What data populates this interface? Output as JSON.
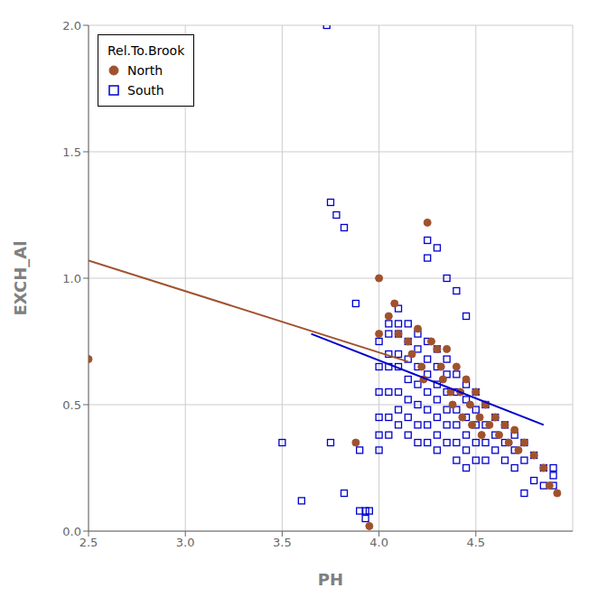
{
  "chart_data": {
    "type": "scatter",
    "xlabel": "PH",
    "ylabel": "EXCH_Al",
    "legend_title": "Rel.To.Brook",
    "legend": "upper left",
    "grid": true,
    "xlim": [
      2.5,
      5.0
    ],
    "ylim": [
      0,
      2.0
    ],
    "xticks": [
      2.5,
      {
        "value": 3,
        "label": "3.0"
      },
      3.5,
      {
        "value": 4,
        "label": "4.0"
      },
      4.5
    ],
    "yticks": [
      {
        "value": 0,
        "label": "0.0"
      },
      0.5,
      {
        "value": 1,
        "label": "1.0"
      },
      1.5,
      {
        "value": 2,
        "label": "2.0"
      }
    ],
    "series": [
      {
        "name": "North",
        "color": "#A0522D",
        "marker": "circle",
        "points": [
          [
            2.5,
            0.68
          ],
          [
            3.88,
            0.35
          ],
          [
            3.95,
            0.02
          ],
          [
            4.0,
            1.0
          ],
          [
            4.0,
            0.78
          ],
          [
            4.05,
            0.85
          ],
          [
            4.08,
            0.9
          ],
          [
            4.1,
            0.78
          ],
          [
            4.15,
            0.75
          ],
          [
            4.17,
            0.7
          ],
          [
            4.2,
            0.8
          ],
          [
            4.22,
            0.65
          ],
          [
            4.23,
            0.6
          ],
          [
            4.25,
            1.22
          ],
          [
            4.27,
            0.75
          ],
          [
            4.3,
            0.72
          ],
          [
            4.32,
            0.65
          ],
          [
            4.33,
            0.6
          ],
          [
            4.35,
            0.72
          ],
          [
            4.37,
            0.55
          ],
          [
            4.38,
            0.5
          ],
          [
            4.4,
            0.65
          ],
          [
            4.42,
            0.55
          ],
          [
            4.43,
            0.45
          ],
          [
            4.45,
            0.6
          ],
          [
            4.47,
            0.5
          ],
          [
            4.48,
            0.42
          ],
          [
            4.5,
            0.55
          ],
          [
            4.52,
            0.45
          ],
          [
            4.53,
            0.38
          ],
          [
            4.55,
            0.5
          ],
          [
            4.57,
            0.42
          ],
          [
            4.6,
            0.45
          ],
          [
            4.62,
            0.38
          ],
          [
            4.65,
            0.42
          ],
          [
            4.67,
            0.35
          ],
          [
            4.7,
            0.4
          ],
          [
            4.72,
            0.32
          ],
          [
            4.75,
            0.35
          ],
          [
            4.8,
            0.3
          ],
          [
            4.85,
            0.25
          ],
          [
            4.88,
            0.18
          ],
          [
            4.92,
            0.15
          ]
        ]
      },
      {
        "name": "South",
        "color": "#0000CD",
        "marker": "open-square",
        "points": [
          [
            3.73,
            2.0
          ],
          [
            3.75,
            1.3
          ],
          [
            3.78,
            1.25
          ],
          [
            3.82,
            1.2
          ],
          [
            3.88,
            0.9
          ],
          [
            3.9,
            0.32
          ],
          [
            3.93,
            0.05
          ],
          [
            3.95,
            0.08
          ],
          [
            3.5,
            0.35
          ],
          [
            3.6,
            0.12
          ],
          [
            3.75,
            0.35
          ],
          [
            3.82,
            0.15
          ],
          [
            3.9,
            0.08
          ],
          [
            3.93,
            0.08
          ],
          [
            4.0,
            0.75
          ],
          [
            4.0,
            0.65
          ],
          [
            4.0,
            0.55
          ],
          [
            4.0,
            0.45
          ],
          [
            4.0,
            0.38
          ],
          [
            4.0,
            0.32
          ],
          [
            4.05,
            0.82
          ],
          [
            4.05,
            0.78
          ],
          [
            4.05,
            0.7
          ],
          [
            4.05,
            0.65
          ],
          [
            4.05,
            0.55
          ],
          [
            4.05,
            0.45
          ],
          [
            4.05,
            0.38
          ],
          [
            4.1,
            0.88
          ],
          [
            4.1,
            0.82
          ],
          [
            4.1,
            0.78
          ],
          [
            4.1,
            0.7
          ],
          [
            4.1,
            0.65
          ],
          [
            4.1,
            0.55
          ],
          [
            4.1,
            0.48
          ],
          [
            4.1,
            0.42
          ],
          [
            4.15,
            0.82
          ],
          [
            4.15,
            0.75
          ],
          [
            4.15,
            0.68
          ],
          [
            4.15,
            0.6
          ],
          [
            4.15,
            0.52
          ],
          [
            4.15,
            0.45
          ],
          [
            4.15,
            0.38
          ],
          [
            4.2,
            0.78
          ],
          [
            4.2,
            0.72
          ],
          [
            4.2,
            0.65
          ],
          [
            4.2,
            0.58
          ],
          [
            4.2,
            0.5
          ],
          [
            4.2,
            0.42
          ],
          [
            4.2,
            0.35
          ],
          [
            4.25,
            1.15
          ],
          [
            4.25,
            1.08
          ],
          [
            4.25,
            0.75
          ],
          [
            4.25,
            0.68
          ],
          [
            4.25,
            0.62
          ],
          [
            4.25,
            0.55
          ],
          [
            4.25,
            0.48
          ],
          [
            4.25,
            0.42
          ],
          [
            4.25,
            0.35
          ],
          [
            4.3,
            1.12
          ],
          [
            4.3,
            0.72
          ],
          [
            4.3,
            0.65
          ],
          [
            4.3,
            0.58
          ],
          [
            4.3,
            0.52
          ],
          [
            4.3,
            0.45
          ],
          [
            4.3,
            0.38
          ],
          [
            4.3,
            0.32
          ],
          [
            4.35,
            1.0
          ],
          [
            4.35,
            0.68
          ],
          [
            4.35,
            0.62
          ],
          [
            4.35,
            0.55
          ],
          [
            4.35,
            0.48
          ],
          [
            4.35,
            0.42
          ],
          [
            4.35,
            0.35
          ],
          [
            4.4,
            0.95
          ],
          [
            4.4,
            0.62
          ],
          [
            4.4,
            0.55
          ],
          [
            4.4,
            0.48
          ],
          [
            4.4,
            0.42
          ],
          [
            4.4,
            0.35
          ],
          [
            4.4,
            0.28
          ],
          [
            4.45,
            0.85
          ],
          [
            4.45,
            0.58
          ],
          [
            4.45,
            0.52
          ],
          [
            4.45,
            0.45
          ],
          [
            4.45,
            0.38
          ],
          [
            4.45,
            0.32
          ],
          [
            4.45,
            0.25
          ],
          [
            4.5,
            0.55
          ],
          [
            4.5,
            0.48
          ],
          [
            4.5,
            0.42
          ],
          [
            4.5,
            0.35
          ],
          [
            4.5,
            0.28
          ],
          [
            4.55,
            0.5
          ],
          [
            4.55,
            0.42
          ],
          [
            4.55,
            0.35
          ],
          [
            4.55,
            0.28
          ],
          [
            4.6,
            0.45
          ],
          [
            4.6,
            0.38
          ],
          [
            4.6,
            0.32
          ],
          [
            4.65,
            0.42
          ],
          [
            4.65,
            0.35
          ],
          [
            4.65,
            0.28
          ],
          [
            4.7,
            0.38
          ],
          [
            4.7,
            0.32
          ],
          [
            4.7,
            0.25
          ],
          [
            4.75,
            0.35
          ],
          [
            4.75,
            0.28
          ],
          [
            4.8,
            0.3
          ],
          [
            4.85,
            0.25
          ],
          [
            4.9,
            0.22
          ],
          [
            4.9,
            0.18
          ],
          [
            4.75,
            0.15
          ],
          [
            4.8,
            0.2
          ],
          [
            4.85,
            0.18
          ],
          [
            4.9,
            0.25
          ]
        ]
      },
      {
        "type": "line",
        "color": "#A0522D",
        "points": [
          [
            2.5,
            1.07
          ],
          [
            4.15,
            0.67
          ]
        ]
      },
      {
        "type": "line",
        "color": "#0000CD",
        "points": [
          [
            3.65,
            0.78
          ],
          [
            4.85,
            0.42
          ]
        ]
      }
    ]
  }
}
